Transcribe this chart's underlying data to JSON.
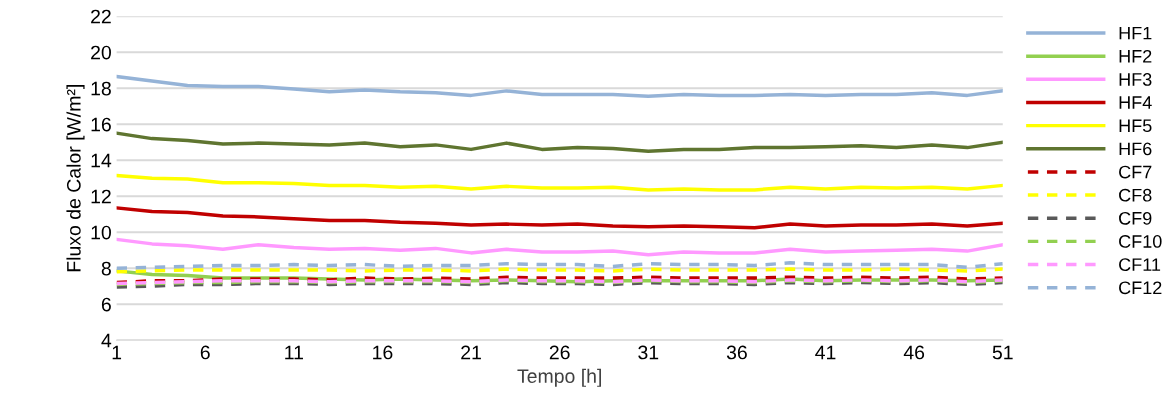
{
  "chart_data": {
    "type": "line",
    "xlabel": "Tempo [h]",
    "ylabel": "Fluxo de Calor [W/m²]",
    "x": [
      1,
      3,
      5,
      7,
      9,
      11,
      13,
      15,
      17,
      19,
      21,
      23,
      25,
      27,
      29,
      31,
      33,
      35,
      37,
      39,
      41,
      43,
      45,
      47,
      49,
      51
    ],
    "xlim": [
      1,
      51
    ],
    "xticks": [
      1,
      6,
      11,
      16,
      21,
      26,
      31,
      36,
      41,
      46,
      51
    ],
    "ylim": [
      4,
      22
    ],
    "yticks": [
      4,
      6,
      8,
      10,
      12,
      14,
      16,
      18,
      20,
      22
    ],
    "grid": "y",
    "legend": "right",
    "series": [
      {
        "name": "HF1",
        "color": "#95b3d7",
        "line_style": "solid",
        "values": [
          18.65,
          18.4,
          18.15,
          18.1,
          18.1,
          17.95,
          17.8,
          17.9,
          17.8,
          17.75,
          17.6,
          17.85,
          17.65,
          17.65,
          17.65,
          17.55,
          17.65,
          17.6,
          17.6,
          17.65,
          17.6,
          17.65,
          17.65,
          17.75,
          17.6,
          17.85
        ]
      },
      {
        "name": "HF2",
        "color": "#92d050",
        "line_style": "solid",
        "values": [
          7.85,
          7.65,
          7.6,
          7.45,
          7.45,
          7.45,
          7.4,
          7.35,
          7.4,
          7.35,
          7.3,
          7.35,
          7.3,
          7.25,
          7.3,
          7.3,
          7.3,
          7.3,
          7.3,
          7.4,
          7.3,
          7.35,
          7.35,
          7.35,
          7.3,
          7.35
        ]
      },
      {
        "name": "HF3",
        "color": "#ff99ff",
        "line_style": "solid",
        "values": [
          9.6,
          9.35,
          9.25,
          9.05,
          9.3,
          9.15,
          9.05,
          9.1,
          9.0,
          9.1,
          8.85,
          9.05,
          8.9,
          8.9,
          8.95,
          8.75,
          8.9,
          8.85,
          8.85,
          9.05,
          8.9,
          8.95,
          9.0,
          9.05,
          8.95,
          9.3
        ]
      },
      {
        "name": "HF4",
        "color": "#c00000",
        "line_style": "solid",
        "values": [
          11.35,
          11.15,
          11.1,
          10.9,
          10.85,
          10.75,
          10.65,
          10.65,
          10.55,
          10.5,
          10.4,
          10.45,
          10.4,
          10.45,
          10.35,
          10.3,
          10.35,
          10.3,
          10.25,
          10.45,
          10.35,
          10.4,
          10.4,
          10.45,
          10.35,
          10.5
        ]
      },
      {
        "name": "HF5",
        "color": "#ffff00",
        "line_style": "solid",
        "values": [
          13.15,
          13.0,
          12.95,
          12.75,
          12.75,
          12.7,
          12.6,
          12.6,
          12.5,
          12.55,
          12.4,
          12.55,
          12.45,
          12.45,
          12.5,
          12.35,
          12.4,
          12.35,
          12.35,
          12.5,
          12.4,
          12.5,
          12.45,
          12.5,
          12.4,
          12.6
        ]
      },
      {
        "name": "HF6",
        "color": "#5f7530",
        "line_style": "solid",
        "values": [
          15.5,
          15.2,
          15.1,
          14.9,
          14.95,
          14.9,
          14.85,
          14.95,
          14.75,
          14.85,
          14.6,
          14.95,
          14.6,
          14.7,
          14.65,
          14.5,
          14.6,
          14.6,
          14.7,
          14.7,
          14.75,
          14.8,
          14.7,
          14.85,
          14.7,
          15.0
        ]
      },
      {
        "name": "CF7",
        "color": "#c00000",
        "line_style": "dashed",
        "values": [
          7.2,
          7.3,
          7.3,
          7.4,
          7.4,
          7.4,
          7.35,
          7.45,
          7.4,
          7.45,
          7.4,
          7.5,
          7.45,
          7.45,
          7.45,
          7.5,
          7.45,
          7.45,
          7.45,
          7.5,
          7.45,
          7.5,
          7.45,
          7.5,
          7.4,
          7.45
        ]
      },
      {
        "name": "CF8",
        "color": "#ffff00",
        "line_style": "dashed",
        "values": [
          7.8,
          7.85,
          7.9,
          7.9,
          7.9,
          7.9,
          7.9,
          7.85,
          7.9,
          7.9,
          7.85,
          7.95,
          7.9,
          7.9,
          7.85,
          7.95,
          7.9,
          7.9,
          7.9,
          7.95,
          7.9,
          7.9,
          7.95,
          7.9,
          7.85,
          7.95
        ]
      },
      {
        "name": "CF9",
        "color": "#595959",
        "line_style": "dashed",
        "values": [
          6.95,
          7.0,
          7.1,
          7.1,
          7.15,
          7.15,
          7.1,
          7.15,
          7.15,
          7.15,
          7.1,
          7.2,
          7.15,
          7.15,
          7.1,
          7.2,
          7.15,
          7.15,
          7.1,
          7.2,
          7.15,
          7.2,
          7.15,
          7.2,
          7.1,
          7.2
        ]
      },
      {
        "name": "CF10",
        "color": "#92d050",
        "line_style": "dashed",
        "values": [
          7.1,
          7.15,
          7.2,
          7.2,
          7.25,
          7.25,
          7.2,
          7.25,
          7.25,
          7.25,
          7.2,
          7.3,
          7.25,
          7.25,
          7.2,
          7.3,
          7.25,
          7.25,
          7.2,
          7.3,
          7.25,
          7.3,
          7.25,
          7.3,
          7.2,
          7.3
        ]
      },
      {
        "name": "CF11",
        "color": "#ff99ff",
        "line_style": "dashed",
        "values": [
          7.15,
          7.2,
          7.25,
          7.3,
          7.3,
          7.3,
          7.25,
          7.3,
          7.3,
          7.3,
          7.25,
          7.35,
          7.3,
          7.3,
          7.25,
          7.35,
          7.3,
          7.3,
          7.25,
          7.35,
          7.3,
          7.35,
          7.3,
          7.35,
          7.25,
          7.35
        ]
      },
      {
        "name": "CF12",
        "color": "#95b3d7",
        "line_style": "dashed",
        "values": [
          8.0,
          8.05,
          8.1,
          8.15,
          8.15,
          8.2,
          8.15,
          8.2,
          8.1,
          8.15,
          8.15,
          8.25,
          8.2,
          8.2,
          8.1,
          8.25,
          8.2,
          8.2,
          8.15,
          8.3,
          8.2,
          8.2,
          8.2,
          8.2,
          8.05,
          8.25
        ]
      }
    ]
  }
}
